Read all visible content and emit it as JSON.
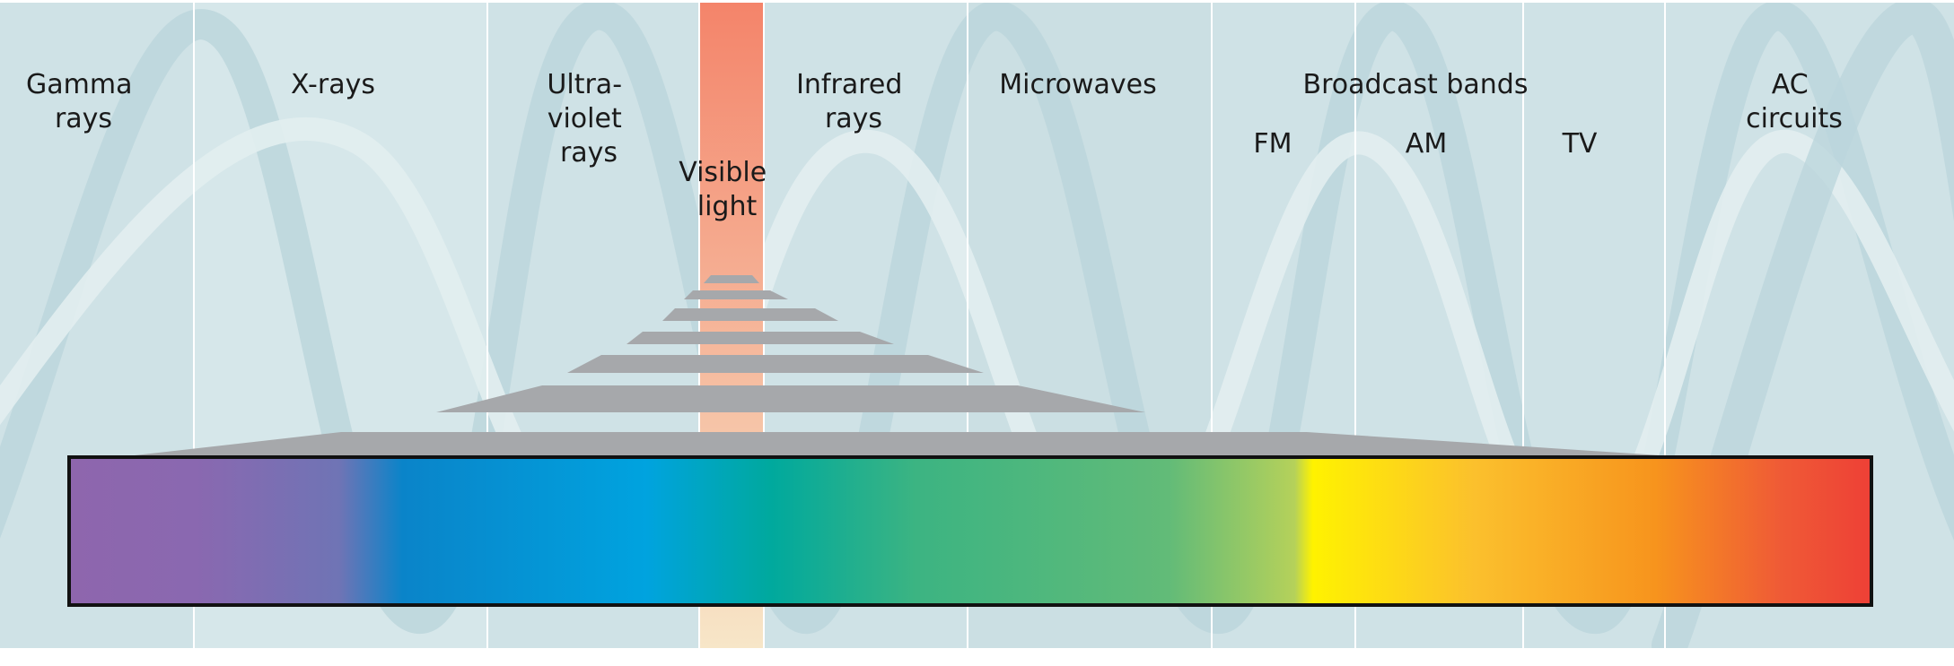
{
  "bands": [
    {
      "id": "gamma",
      "lines": [
        "Gamma",
        "rays"
      ]
    },
    {
      "id": "xray",
      "lines": [
        "X-rays"
      ]
    },
    {
      "id": "uv",
      "lines": [
        "Ultra-",
        "violet",
        "rays"
      ]
    },
    {
      "id": "visible",
      "lines": [
        "Visible",
        "light"
      ]
    },
    {
      "id": "infrared",
      "lines": [
        "Infrared",
        "rays"
      ]
    },
    {
      "id": "microwaves",
      "lines": [
        "Microwaves"
      ]
    },
    {
      "id": "broadcast",
      "lines": [
        "Broadcast bands"
      ]
    },
    {
      "id": "fm",
      "lines": [
        "FM"
      ]
    },
    {
      "id": "am",
      "lines": [
        "AM"
      ]
    },
    {
      "id": "tv",
      "lines": [
        "TV"
      ]
    },
    {
      "id": "ac",
      "lines": [
        "AC",
        "circuits"
      ]
    }
  ],
  "colors": {
    "background": "#cfe2e6",
    "background_alt": "#d6e7ea",
    "wave": "#bcd6dc",
    "wave_light": "#e2eef0",
    "divider": "#ffffff",
    "visible_strip_top": "#f4846a",
    "visible_strip_bottom": "#f7e6c8",
    "prism": "#a6a8ab",
    "spectrum": [
      "#8e66ad",
      "#7c70b3",
      "#0a84c9",
      "#00a3df",
      "#00a99d",
      "#3cb482",
      "#62bb78",
      "#fff200",
      "#fbc02d",
      "#f7941d",
      "#ee4036"
    ]
  }
}
